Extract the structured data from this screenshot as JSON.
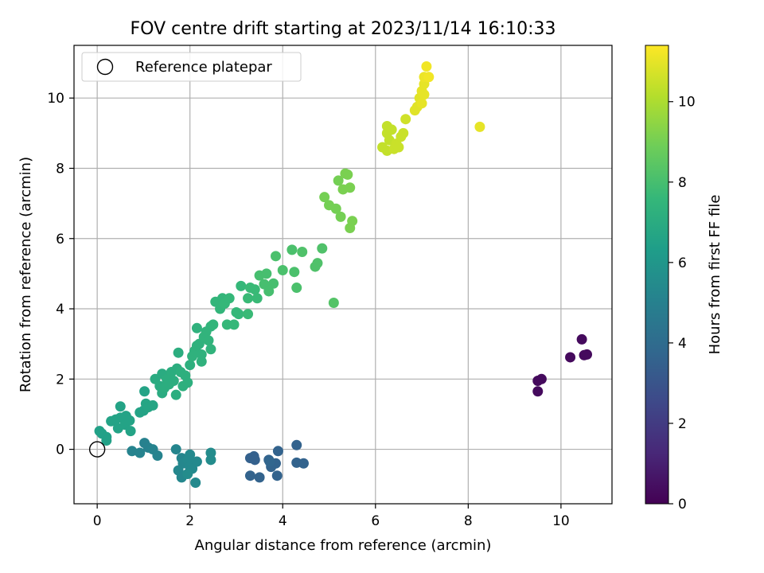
{
  "chart_data": {
    "type": "scatter",
    "title": "FOV centre drift starting at 2023/11/14 16:10:33",
    "xlabel": "Angular distance from reference (arcmin)",
    "ylabel": "Rotation from reference (arcmin)",
    "xlim": [
      -0.5,
      11.1
    ],
    "ylim": [
      -1.55,
      11.5
    ],
    "x_ticks": [
      0,
      2,
      4,
      6,
      8,
      10
    ],
    "y_ticks": [
      0,
      2,
      4,
      6,
      8,
      10
    ],
    "grid": true,
    "legend": {
      "placement": "upper-left",
      "entries": [
        "Reference platepar"
      ]
    },
    "reference_point": {
      "x": 0,
      "y": 0
    },
    "colorbar": {
      "label": "Hours from first FF file",
      "colormap": "viridis",
      "range": [
        0,
        11.4
      ],
      "ticks": [
        0,
        2,
        4,
        6,
        8,
        10
      ]
    },
    "points": [
      [
        9.5,
        1.95,
        0.3
      ],
      [
        9.58,
        2.0,
        0.3
      ],
      [
        9.5,
        1.65,
        0.3
      ],
      [
        10.2,
        2.62,
        0.3
      ],
      [
        10.45,
        3.13,
        0.3
      ],
      [
        10.5,
        2.68,
        0.3
      ],
      [
        10.56,
        2.7,
        0.3
      ],
      [
        3.3,
        -0.25,
        3.5
      ],
      [
        3.38,
        -0.2,
        3.5
      ],
      [
        3.4,
        -0.3,
        3.5
      ],
      [
        3.3,
        -0.75,
        3.6
      ],
      [
        3.5,
        -0.8,
        3.6
      ],
      [
        3.7,
        -0.3,
        3.6
      ],
      [
        3.75,
        -0.5,
        3.6
      ],
      [
        3.85,
        -0.4,
        3.6
      ],
      [
        3.88,
        -0.75,
        3.6
      ],
      [
        3.9,
        -0.05,
        3.6
      ],
      [
        4.3,
        0.12,
        3.6
      ],
      [
        4.3,
        -0.38,
        3.6
      ],
      [
        4.45,
        -0.4,
        3.6
      ],
      [
        3.72,
        -0.35,
        3.7
      ],
      [
        1.02,
        0.18,
        5.0
      ],
      [
        1.1,
        0.05,
        5.0
      ],
      [
        1.2,
        0.0,
        5.1
      ],
      [
        1.3,
        -0.18,
        5.1
      ],
      [
        0.75,
        -0.05,
        5.1
      ],
      [
        0.92,
        -0.1,
        5.1
      ],
      [
        1.7,
        0.0,
        5.2
      ],
      [
        1.82,
        -0.25,
        5.2
      ],
      [
        1.75,
        -0.6,
        5.3
      ],
      [
        1.82,
        -0.8,
        5.3
      ],
      [
        1.85,
        -0.4,
        5.3
      ],
      [
        1.95,
        -0.3,
        5.4
      ],
      [
        2.0,
        -0.5,
        5.4
      ],
      [
        2.05,
        -0.55,
        5.4
      ],
      [
        2.0,
        -0.15,
        5.4
      ],
      [
        2.12,
        -0.95,
        5.4
      ],
      [
        2.15,
        -0.35,
        5.4
      ],
      [
        2.45,
        -0.1,
        5.5
      ],
      [
        2.45,
        -0.3,
        5.5
      ],
      [
        1.95,
        -0.7,
        5.5
      ],
      [
        0.05,
        0.52,
        6.5
      ],
      [
        0.1,
        0.45,
        6.5
      ],
      [
        0.2,
        0.35,
        6.5
      ],
      [
        0.2,
        0.25,
        6.5
      ],
      [
        0.3,
        0.8,
        6.6
      ],
      [
        0.4,
        0.85,
        6.6
      ],
      [
        0.45,
        0.6,
        6.6
      ],
      [
        0.5,
        0.9,
        6.6
      ],
      [
        0.5,
        1.22,
        6.6
      ],
      [
        0.6,
        0.7,
        6.6
      ],
      [
        0.62,
        0.95,
        6.6
      ],
      [
        0.7,
        0.82,
        6.6
      ],
      [
        0.72,
        0.52,
        6.6
      ],
      [
        0.92,
        1.05,
        6.6
      ],
      [
        1.0,
        1.1,
        6.6
      ],
      [
        1.02,
        1.65,
        6.6
      ],
      [
        1.05,
        1.3,
        6.7
      ],
      [
        1.1,
        1.2,
        6.7
      ],
      [
        1.2,
        1.25,
        6.7
      ],
      [
        1.25,
        2.0,
        7.0
      ],
      [
        1.35,
        1.8,
        7.0
      ],
      [
        1.4,
        1.6,
        7.0
      ],
      [
        1.4,
        2.15,
        7.0
      ],
      [
        1.45,
        1.75,
        7.1
      ],
      [
        1.5,
        2.0,
        7.1
      ],
      [
        1.55,
        1.85,
        7.1
      ],
      [
        1.6,
        2.2,
        7.1
      ],
      [
        1.65,
        1.95,
        7.1
      ],
      [
        1.7,
        1.55,
        7.1
      ],
      [
        1.72,
        2.3,
        7.1
      ],
      [
        1.75,
        2.75,
        7.1
      ],
      [
        1.8,
        2.2,
        7.2
      ],
      [
        1.85,
        1.8,
        7.2
      ],
      [
        1.9,
        2.1,
        7.2
      ],
      [
        1.95,
        1.9,
        7.2
      ],
      [
        2.0,
        2.4,
        7.2
      ],
      [
        2.05,
        2.65,
        7.3
      ],
      [
        2.1,
        2.8,
        7.3
      ],
      [
        2.15,
        2.95,
        7.3
      ],
      [
        2.15,
        3.45,
        7.3
      ],
      [
        2.2,
        3.0,
        7.3
      ],
      [
        2.25,
        2.7,
        7.3
      ],
      [
        2.25,
        2.5,
        7.3
      ],
      [
        2.3,
        3.2,
        7.4
      ],
      [
        2.35,
        3.35,
        7.4
      ],
      [
        2.4,
        3.1,
        7.4
      ],
      [
        2.45,
        3.5,
        7.4
      ],
      [
        2.45,
        2.85,
        7.4
      ],
      [
        2.5,
        3.55,
        7.5
      ],
      [
        2.55,
        4.2,
        7.5
      ],
      [
        2.65,
        4.0,
        7.5
      ],
      [
        2.7,
        4.3,
        7.5
      ],
      [
        2.75,
        4.15,
        7.6
      ],
      [
        2.8,
        3.55,
        7.6
      ],
      [
        2.85,
        4.3,
        7.6
      ],
      [
        2.95,
        3.55,
        7.6
      ],
      [
        3.0,
        3.9,
        7.6
      ],
      [
        3.05,
        3.85,
        7.6
      ],
      [
        3.1,
        4.65,
        7.6
      ],
      [
        3.25,
        3.85,
        7.7
      ],
      [
        3.25,
        4.3,
        7.7
      ],
      [
        3.3,
        4.6,
        7.7
      ],
      [
        3.4,
        4.55,
        7.7
      ],
      [
        3.45,
        4.3,
        7.7
      ],
      [
        3.5,
        4.95,
        8.0
      ],
      [
        3.6,
        4.7,
        8.0
      ],
      [
        3.65,
        5.0,
        8.0
      ],
      [
        3.7,
        4.5,
        8.0
      ],
      [
        3.8,
        4.72,
        8.0
      ],
      [
        3.85,
        5.5,
        8.1
      ],
      [
        4.0,
        5.1,
        8.1
      ],
      [
        4.2,
        5.68,
        8.1
      ],
      [
        4.25,
        5.05,
        8.1
      ],
      [
        4.3,
        4.6,
        8.1
      ],
      [
        4.42,
        5.62,
        8.2
      ],
      [
        4.7,
        5.2,
        8.2
      ],
      [
        4.75,
        5.3,
        8.2
      ],
      [
        4.85,
        5.72,
        8.2
      ],
      [
        5.1,
        4.17,
        8.3
      ],
      [
        4.9,
        7.18,
        9.0
      ],
      [
        5.0,
        6.95,
        9.0
      ],
      [
        5.15,
        6.85,
        9.0
      ],
      [
        5.2,
        7.65,
        9.0
      ],
      [
        5.25,
        6.62,
        9.0
      ],
      [
        5.3,
        7.4,
        9.1
      ],
      [
        5.35,
        7.85,
        9.1
      ],
      [
        5.4,
        7.82,
        9.1
      ],
      [
        5.45,
        6.3,
        9.1
      ],
      [
        5.45,
        7.45,
        9.1
      ],
      [
        5.5,
        6.5,
        9.1
      ],
      [
        6.15,
        8.6,
        10.4
      ],
      [
        6.25,
        8.5,
        10.4
      ],
      [
        6.25,
        9.0,
        10.4
      ],
      [
        6.25,
        9.2,
        10.4
      ],
      [
        6.3,
        8.8,
        10.4
      ],
      [
        6.35,
        9.1,
        10.4
      ],
      [
        6.4,
        8.55,
        10.5
      ],
      [
        6.45,
        8.7,
        10.5
      ],
      [
        6.5,
        8.6,
        10.5
      ],
      [
        6.55,
        8.9,
        10.5
      ],
      [
        6.6,
        9.0,
        10.5
      ],
      [
        6.65,
        9.4,
        10.6
      ],
      [
        6.85,
        9.65,
        10.9
      ],
      [
        6.9,
        9.75,
        10.9
      ],
      [
        6.95,
        10.0,
        10.9
      ],
      [
        7.0,
        10.2,
        11.0
      ],
      [
        7.0,
        9.85,
        11.0
      ],
      [
        7.05,
        10.4,
        11.0
      ],
      [
        7.05,
        10.1,
        11.0
      ],
      [
        7.05,
        10.6,
        11.1
      ],
      [
        7.1,
        10.9,
        11.2
      ],
      [
        7.15,
        10.6,
        11.2
      ],
      [
        8.25,
        9.18,
        11.0
      ]
    ]
  }
}
